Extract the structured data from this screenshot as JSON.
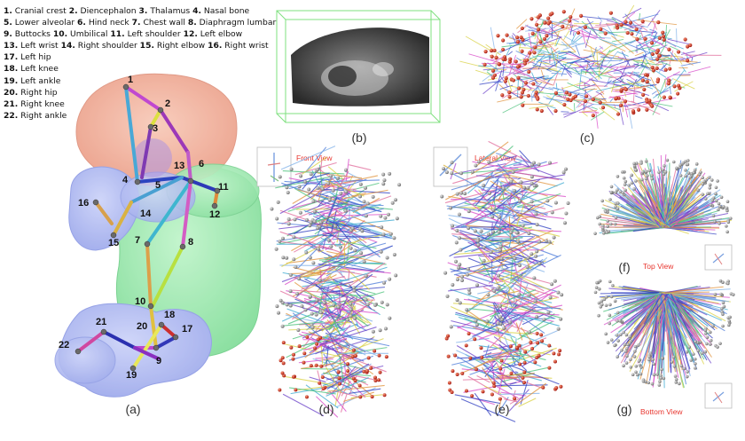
{
  "legend": {
    "lines": [
      [
        {
          "n": "1.",
          "t": "Cranial crest"
        },
        {
          "n": "2.",
          "t": "Diencephalon"
        },
        {
          "n": "3.",
          "t": "Thalamus"
        },
        {
          "n": "4.",
          "t": "Nasal bone"
        }
      ],
      [
        {
          "n": "5.",
          "t": "Lower alveolar"
        },
        {
          "n": "6.",
          "t": "Hind neck"
        },
        {
          "n": "7.",
          "t": "Chest wall"
        },
        {
          "n": "8.",
          "t": "Diaphragm lumbar"
        }
      ],
      [
        {
          "n": "9.",
          "t": "Buttocks"
        },
        {
          "n": "10.",
          "t": "Umbilical"
        },
        {
          "n": "11.",
          "t": "Left shoulder"
        },
        {
          "n": "12.",
          "t": "Left elbow"
        }
      ],
      [
        {
          "n": "13.",
          "t": "Left wrist"
        },
        {
          "n": "14.",
          "t": "Right shoulder"
        },
        {
          "n": "15.",
          "t": "Right elbow"
        },
        {
          "n": "16.",
          "t": "Right wrist"
        }
      ],
      [
        {
          "n": "17.",
          "t": "Left hip"
        }
      ],
      [
        {
          "n": "18.",
          "t": "Left knee"
        }
      ],
      [
        {
          "n": "19.",
          "t": "Left ankle"
        }
      ],
      [
        {
          "n": "20.",
          "t": "Right hip"
        }
      ],
      [
        {
          "n": "21.",
          "t": "Right knee"
        }
      ],
      [
        {
          "n": "22.",
          "t": "Right ankle"
        }
      ]
    ]
  },
  "panels": {
    "a": {
      "caption": "(a)"
    },
    "b": {
      "caption": "(b)"
    },
    "c": {
      "caption": "(c)"
    },
    "d": {
      "caption": "(d)",
      "view": "Front View"
    },
    "e": {
      "caption": "(e)",
      "view": "Lateral View"
    },
    "f": {
      "caption": "(f)",
      "view": "Top View"
    },
    "g": {
      "caption": "(g)",
      "view": "Bottom View"
    }
  },
  "joint_numbers": [
    "1",
    "2",
    "3",
    "4",
    "5",
    "6",
    "7",
    "8",
    "9",
    "10",
    "11",
    "12",
    "13",
    "14",
    "15",
    "16",
    "17",
    "18",
    "19",
    "20",
    "21",
    "22"
  ],
  "colors": {
    "head": "#f4a890",
    "body": "#8be6a0",
    "limbs": "#8fa0f0",
    "view_label": "#e8362f",
    "box": "#7fe07f"
  }
}
